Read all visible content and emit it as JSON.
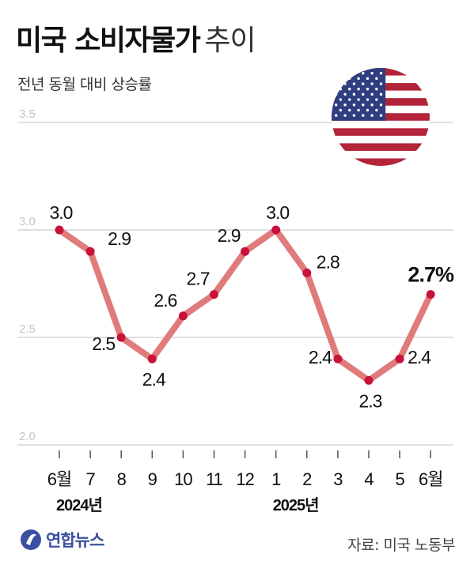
{
  "title": "미국 소비자물가",
  "title_suffix": "추이",
  "subtitle": "전년 동월 대비 상승률",
  "source": "자료: 미국 노동부",
  "logo_text": "연합뉴스",
  "colors": {
    "line": "#e07b7b",
    "point": "#c8123c",
    "grid": "#d6d6d6",
    "flag_red": "#b3243a",
    "flag_blue": "#2f3e80",
    "logo": "#3a4fa0"
  },
  "chart_data": {
    "type": "line",
    "title": "미국 소비자물가 추이",
    "subtitle": "전년 동월 대비 상승률",
    "categories": [
      "6월",
      "7",
      "8",
      "9",
      "10",
      "11",
      "12",
      "1",
      "2",
      "3",
      "4",
      "5",
      "6월"
    ],
    "year_labels": [
      {
        "text": "2024년",
        "index": 0
      },
      {
        "text": "2025년",
        "index": 7
      }
    ],
    "series": [
      {
        "values": [
          3.0,
          2.9,
          2.5,
          2.4,
          2.6,
          2.7,
          2.9,
          3.0,
          2.8,
          2.4,
          2.3,
          2.4,
          2.7
        ],
        "labels": [
          "3.0",
          "2.9",
          "2.5",
          "2.4",
          "2.6",
          "2.7",
          "2.9",
          "3.0",
          "2.8",
          "2.4",
          "2.3",
          "2.4",
          "2.7%"
        ]
      }
    ],
    "yticks": [
      "3.5",
      "3.0",
      "2.5",
      "2.0"
    ],
    "ylim": [
      2.0,
      3.5
    ],
    "grid": true,
    "legend": "none"
  }
}
